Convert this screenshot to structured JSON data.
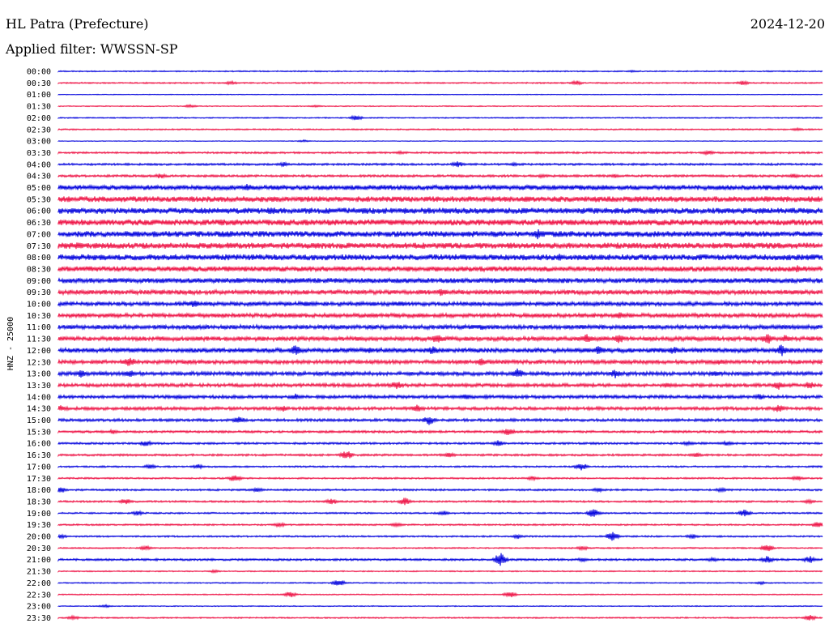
{
  "header": {
    "station": "HL Patra (Prefecture)",
    "date": "2024-12-20",
    "filter_label": "Applied filter: WWSSN-SP"
  },
  "chart_data": {
    "type": "line",
    "title": "HL Patra (Prefecture)",
    "subtitle": "Applied filter: WWSSN-SP",
    "date": "2024-12-20",
    "ylabel": "HNZ - 25000",
    "xlabel": "",
    "colors": [
      "#0000dd",
      "#ee1144"
    ],
    "rows": [
      {
        "time": "00:00",
        "color": "#0000dd",
        "noise": 0.5,
        "events": [
          [
            780,
            1.5
          ]
        ]
      },
      {
        "time": "00:30",
        "color": "#ee1144",
        "noise": 0.6,
        "events": [
          [
            285,
            2.5
          ],
          [
            712,
            3
          ],
          [
            918,
            3
          ]
        ]
      },
      {
        "time": "01:00",
        "color": "#0000dd",
        "noise": 0.3,
        "events": []
      },
      {
        "time": "01:30",
        "color": "#ee1144",
        "noise": 0.4,
        "events": [
          [
            235,
            2
          ],
          [
            390,
            1.5
          ]
        ]
      },
      {
        "time": "02:00",
        "color": "#0000dd",
        "noise": 0.5,
        "events": [
          [
            440,
            3.5
          ]
        ]
      },
      {
        "time": "02:30",
        "color": "#ee1144",
        "noise": 0.6,
        "events": [
          [
            985,
            2
          ]
        ]
      },
      {
        "time": "03:00",
        "color": "#0000dd",
        "noise": 0.3,
        "events": [
          [
            375,
            1.5
          ]
        ]
      },
      {
        "time": "03:30",
        "color": "#ee1144",
        "noise": 0.8,
        "events": [
          [
            495,
            2
          ],
          [
            875,
            3
          ]
        ]
      },
      {
        "time": "04:00",
        "color": "#0000dd",
        "noise": 0.9,
        "events": [
          [
            350,
            3
          ],
          [
            565,
            4
          ],
          [
            635,
            2.5
          ]
        ]
      },
      {
        "time": "04:30",
        "color": "#ee1144",
        "noise": 1.0,
        "events": [
          [
            198,
            3.5
          ],
          [
            670,
            2.5
          ],
          [
            760,
            2.5
          ],
          [
            980,
            3
          ]
        ]
      },
      {
        "time": "05:00",
        "color": "#0000dd",
        "noise": 2.2,
        "events": [
          [
            305,
            5
          ]
        ]
      },
      {
        "time": "05:30",
        "color": "#ee1144",
        "noise": 2.5,
        "events": [
          [
            650,
            4
          ],
          [
            735,
            4
          ]
        ]
      },
      {
        "time": "06:00",
        "color": "#0000dd",
        "noise": 2.6,
        "events": [
          [
            335,
            6
          ]
        ]
      },
      {
        "time": "06:30",
        "color": "#ee1144",
        "noise": 2.6,
        "events": []
      },
      {
        "time": "07:00",
        "color": "#0000dd",
        "noise": 2.6,
        "events": [
          [
            665,
            7
          ]
        ]
      },
      {
        "time": "07:30",
        "color": "#ee1144",
        "noise": 2.6,
        "events": [
          [
            95,
            5
          ]
        ]
      },
      {
        "time": "08:00",
        "color": "#0000dd",
        "noise": 2.6,
        "events": [
          [
            690,
            5
          ]
        ]
      },
      {
        "time": "08:30",
        "color": "#ee1144",
        "noise": 2.3,
        "events": [
          [
            985,
            5
          ]
        ]
      },
      {
        "time": "09:00",
        "color": "#0000dd",
        "noise": 2.2,
        "events": [
          [
            295,
            4
          ]
        ]
      },
      {
        "time": "09:30",
        "color": "#ee1144",
        "noise": 2.0,
        "events": [
          [
            545,
            5
          ]
        ]
      },
      {
        "time": "10:00",
        "color": "#0000dd",
        "noise": 1.8,
        "events": [
          [
            240,
            5
          ],
          [
            380,
            4
          ],
          [
            495,
            4
          ]
        ]
      },
      {
        "time": "10:30",
        "color": "#ee1144",
        "noise": 1.8,
        "events": [
          [
            460,
            3
          ],
          [
            765,
            5
          ]
        ]
      },
      {
        "time": "11:00",
        "color": "#0000dd",
        "noise": 1.9,
        "events": [
          [
            595,
            4
          ]
        ]
      },
      {
        "time": "11:30",
        "color": "#ee1144",
        "noise": 1.9,
        "events": [
          [
            540,
            6
          ],
          [
            725,
            6
          ],
          [
            765,
            6
          ],
          [
            948,
            7
          ],
          [
            970,
            5
          ]
        ]
      },
      {
        "time": "12:00",
        "color": "#0000dd",
        "noise": 2.0,
        "events": [
          [
            365,
            7
          ],
          [
            455,
            4
          ],
          [
            535,
            6
          ],
          [
            740,
            6
          ],
          [
            832,
            5
          ],
          [
            965,
            8
          ]
        ]
      },
      {
        "time": "12:30",
        "color": "#ee1144",
        "noise": 1.7,
        "events": [
          [
            160,
            7
          ],
          [
            595,
            5
          ],
          [
            890,
            4
          ]
        ]
      },
      {
        "time": "13:00",
        "color": "#0000dd",
        "noise": 1.7,
        "events": [
          [
            100,
            5
          ],
          [
            160,
            5
          ],
          [
            640,
            7
          ],
          [
            760,
            6
          ],
          [
            884,
            4
          ]
        ]
      },
      {
        "time": "13:30",
        "color": "#ee1144",
        "noise": 1.5,
        "events": [
          [
            490,
            6
          ],
          [
            825,
            4
          ],
          [
            962,
            6
          ],
          [
            1000,
            5
          ]
        ]
      },
      {
        "time": "14:00",
        "color": "#0000dd",
        "noise": 1.4,
        "events": [
          [
            220,
            3
          ],
          [
            365,
            4
          ],
          [
            575,
            4
          ],
          [
            938,
            4
          ]
        ]
      },
      {
        "time": "14:30",
        "color": "#ee1144",
        "noise": 1.4,
        "events": [
          [
            75,
            4
          ],
          [
            350,
            4
          ],
          [
            515,
            5
          ],
          [
            962,
            5
          ]
        ]
      },
      {
        "time": "15:00",
        "color": "#0000dd",
        "noise": 1.2,
        "events": [
          [
            295,
            5
          ],
          [
            530,
            6
          ]
        ]
      },
      {
        "time": "15:30",
        "color": "#ee1144",
        "noise": 1.0,
        "events": [
          [
            140,
            3
          ],
          [
            628,
            5
          ]
        ]
      },
      {
        "time": "16:00",
        "color": "#0000dd",
        "noise": 0.9,
        "events": [
          [
            180,
            4
          ],
          [
            615,
            4
          ],
          [
            850,
            3
          ],
          [
            898,
            3
          ]
        ]
      },
      {
        "time": "16:30",
        "color": "#ee1144",
        "noise": 0.9,
        "events": [
          [
            428,
            6
          ],
          [
            555,
            4
          ],
          [
            860,
            3
          ]
        ]
      },
      {
        "time": "17:00",
        "color": "#0000dd",
        "noise": 0.7,
        "events": [
          [
            185,
            3
          ],
          [
            245,
            3
          ],
          [
            718,
            5
          ]
        ]
      },
      {
        "time": "17:30",
        "color": "#ee1144",
        "noise": 0.7,
        "events": [
          [
            290,
            5
          ],
          [
            658,
            3
          ],
          [
            985,
            3
          ]
        ]
      },
      {
        "time": "18:00",
        "color": "#0000dd",
        "noise": 0.8,
        "events": [
          [
            75,
            4
          ],
          [
            318,
            3
          ],
          [
            738,
            3
          ],
          [
            890,
            3
          ]
        ]
      },
      {
        "time": "18:30",
        "color": "#ee1144",
        "noise": 0.8,
        "events": [
          [
            155,
            4
          ],
          [
            410,
            4
          ],
          [
            500,
            5
          ],
          [
            1000,
            3
          ]
        ]
      },
      {
        "time": "19:00",
        "color": "#0000dd",
        "noise": 0.7,
        "events": [
          [
            170,
            3
          ],
          [
            548,
            3
          ],
          [
            733,
            6
          ],
          [
            920,
            5
          ]
        ]
      },
      {
        "time": "19:30",
        "color": "#ee1144",
        "noise": 0.7,
        "events": [
          [
            345,
            3
          ],
          [
            490,
            3
          ],
          [
            1010,
            4
          ]
        ]
      },
      {
        "time": "20:00",
        "color": "#0000dd",
        "noise": 0.7,
        "events": [
          [
            75,
            3
          ],
          [
            640,
            3
          ],
          [
            757,
            6
          ],
          [
            855,
            3
          ]
        ]
      },
      {
        "time": "20:30",
        "color": "#ee1144",
        "noise": 0.6,
        "events": [
          [
            180,
            3
          ],
          [
            720,
            3
          ],
          [
            948,
            5
          ]
        ]
      },
      {
        "time": "21:00",
        "color": "#0000dd",
        "noise": 0.9,
        "events": [
          [
            618,
            9
          ],
          [
            720,
            3
          ],
          [
            880,
            3
          ],
          [
            948,
            5
          ],
          [
            1000,
            5
          ]
        ]
      },
      {
        "time": "21:30",
        "color": "#ee1144",
        "noise": 0.5,
        "events": [
          [
            265,
            2
          ]
        ]
      },
      {
        "time": "22:00",
        "color": "#0000dd",
        "noise": 0.5,
        "events": [
          [
            418,
            5
          ],
          [
            940,
            2
          ]
        ]
      },
      {
        "time": "22:30",
        "color": "#ee1144",
        "noise": 0.5,
        "events": [
          [
            358,
            4
          ],
          [
            630,
            4
          ]
        ]
      },
      {
        "time": "23:00",
        "color": "#0000dd",
        "noise": 0.4,
        "events": [
          [
            130,
            2
          ]
        ]
      },
      {
        "time": "23:30",
        "color": "#ee1144",
        "noise": 0.6,
        "events": [
          [
            90,
            3
          ],
          [
            1000,
            4
          ]
        ]
      }
    ]
  }
}
